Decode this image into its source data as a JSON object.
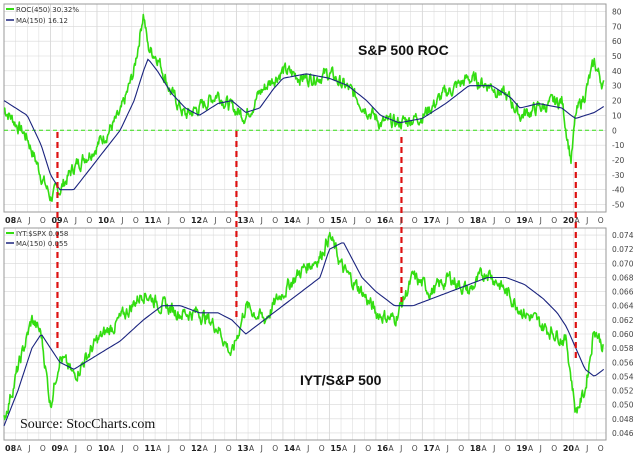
{
  "chart_data": [
    {
      "type": "line",
      "title": "S&P 500 ROC",
      "legend": [
        {
          "label": "ROC(450) 30.32%",
          "color": "#33dd11"
        },
        {
          "label": "MA(150) 16.12",
          "color": "#1a237e"
        }
      ],
      "y_ticks": [
        "80",
        "70",
        "60",
        "50",
        "40",
        "30",
        "20",
        "10",
        "0",
        "-10",
        "-20",
        "-30",
        "-40",
        "-50"
      ],
      "ylim": [
        -55,
        85
      ],
      "reference_line": 0,
      "x": [
        2008.0,
        2008.5,
        2008.8,
        2009.0,
        2009.2,
        2009.5,
        2010.0,
        2010.5,
        2010.8,
        2011.0,
        2011.1,
        2011.3,
        2011.6,
        2011.9,
        2012.2,
        2012.6,
        2012.9,
        2013.2,
        2013.5,
        2013.8,
        2014.0,
        2014.5,
        2015.0,
        2015.4,
        2015.8,
        2016.1,
        2016.5,
        2017.0,
        2017.5,
        2018.0,
        2018.5,
        2018.9,
        2019.1,
        2019.5,
        2020.0,
        2020.2,
        2020.3,
        2020.5,
        2020.7,
        2020.9
      ],
      "series": [
        {
          "name": "ROC(450) 30.32%",
          "color": "#33dd11",
          "values": [
            15,
            -5,
            -30,
            -45,
            -40,
            -25,
            -10,
            10,
            40,
            80,
            55,
            50,
            25,
            10,
            15,
            25,
            15,
            10,
            25,
            35,
            40,
            35,
            38,
            28,
            15,
            5,
            5,
            10,
            25,
            35,
            30,
            20,
            10,
            15,
            20,
            -20,
            10,
            25,
            45,
            30
          ]
        },
        {
          "name": "MA(150) 16.12",
          "color": "#1a237e",
          "values": [
            20,
            10,
            -10,
            -30,
            -40,
            -40,
            -20,
            0,
            20,
            40,
            48,
            40,
            25,
            15,
            10,
            18,
            20,
            12,
            15,
            28,
            35,
            38,
            35,
            30,
            20,
            10,
            5,
            8,
            18,
            30,
            30,
            22,
            15,
            18,
            15,
            10,
            8,
            10,
            12,
            16
          ]
        }
      ]
    },
    {
      "type": "line",
      "title": "IYT/S&P 500",
      "legend": [
        {
          "label": "IYT:$SPX 0.058",
          "color": "#33dd11"
        },
        {
          "label": "MA(150) 0.055",
          "color": "#1a237e"
        }
      ],
      "y_ticks": [
        "0.074",
        "0.072",
        "0.070",
        "0.068",
        "0.066",
        "0.064",
        "0.062",
        "0.060",
        "0.058",
        "0.056",
        "0.054",
        "0.052",
        "0.050",
        "0.048",
        "0.046"
      ],
      "ylim": [
        0.045,
        0.075
      ],
      "x": [
        2008.0,
        2008.3,
        2008.6,
        2008.8,
        2009.0,
        2009.2,
        2009.5,
        2010.0,
        2010.5,
        2011.0,
        2011.4,
        2011.8,
        2012.2,
        2012.6,
        2012.9,
        2013.2,
        2013.6,
        2014.0,
        2014.4,
        2014.8,
        2015.0,
        2015.3,
        2015.7,
        2016.0,
        2016.4,
        2016.8,
        2017.2,
        2017.6,
        2018.0,
        2018.4,
        2018.8,
        2019.2,
        2019.6,
        2019.9,
        2020.1,
        2020.3,
        2020.5,
        2020.7,
        2020.9
      ],
      "series": [
        {
          "name": "IYT:$SPX 0.058",
          "color": "#33dd11",
          "values": [
            0.048,
            0.055,
            0.062,
            0.06,
            0.05,
            0.057,
            0.054,
            0.059,
            0.062,
            0.066,
            0.064,
            0.063,
            0.063,
            0.061,
            0.057,
            0.064,
            0.062,
            0.066,
            0.069,
            0.071,
            0.074,
            0.069,
            0.066,
            0.063,
            0.062,
            0.068,
            0.066,
            0.068,
            0.066,
            0.069,
            0.066,
            0.063,
            0.061,
            0.06,
            0.059,
            0.049,
            0.052,
            0.061,
            0.058
          ]
        },
        {
          "name": "MA(150) 0.055",
          "color": "#1a237e",
          "values": [
            0.047,
            0.052,
            0.058,
            0.06,
            0.058,
            0.056,
            0.055,
            0.057,
            0.059,
            0.062,
            0.064,
            0.064,
            0.063,
            0.063,
            0.062,
            0.06,
            0.062,
            0.064,
            0.066,
            0.068,
            0.072,
            0.073,
            0.068,
            0.066,
            0.064,
            0.064,
            0.065,
            0.066,
            0.067,
            0.068,
            0.068,
            0.067,
            0.065,
            0.063,
            0.061,
            0.058,
            0.055,
            0.054,
            0.055
          ]
        }
      ]
    }
  ],
  "x_axis": {
    "ticks": [
      {
        "label": "08",
        "year": true
      },
      {
        "label": "A"
      },
      {
        "label": "J"
      },
      {
        "label": "O"
      },
      {
        "label": "09",
        "year": true
      },
      {
        "label": "A"
      },
      {
        "label": "J"
      },
      {
        "label": "O"
      },
      {
        "label": "10",
        "year": true
      },
      {
        "label": "A"
      },
      {
        "label": "J"
      },
      {
        "label": "O"
      },
      {
        "label": "11",
        "year": true
      },
      {
        "label": "A"
      },
      {
        "label": "J"
      },
      {
        "label": "O"
      },
      {
        "label": "12",
        "year": true
      },
      {
        "label": "A"
      },
      {
        "label": "J"
      },
      {
        "label": "O"
      },
      {
        "label": "13",
        "year": true
      },
      {
        "label": "A"
      },
      {
        "label": "J"
      },
      {
        "label": "O"
      },
      {
        "label": "14",
        "year": true
      },
      {
        "label": "A"
      },
      {
        "label": "J"
      },
      {
        "label": "O"
      },
      {
        "label": "15",
        "year": true
      },
      {
        "label": "A"
      },
      {
        "label": "J"
      },
      {
        "label": "O"
      },
      {
        "label": "16",
        "year": true
      },
      {
        "label": "A"
      },
      {
        "label": "J"
      },
      {
        "label": "O"
      },
      {
        "label": "17",
        "year": true
      },
      {
        "label": "A"
      },
      {
        "label": "J"
      },
      {
        "label": "O"
      },
      {
        "label": "18",
        "year": true
      },
      {
        "label": "A"
      },
      {
        "label": "J"
      },
      {
        "label": "O"
      },
      {
        "label": "19",
        "year": true
      },
      {
        "label": "A"
      },
      {
        "label": "J"
      },
      {
        "label": "O"
      },
      {
        "label": "20",
        "year": true
      },
      {
        "label": "A"
      },
      {
        "label": "J"
      },
      {
        "label": "O"
      }
    ]
  },
  "markers": [
    2009.15,
    2013.0,
    2016.55,
    2020.3
  ],
  "source": "Source: StocCharts.com",
  "colors": {
    "price": "#33dd11",
    "ma": "#1a237e",
    "marker": "#dd1111",
    "zero_line": "#33dd11",
    "grid": "#d8d8d8"
  }
}
